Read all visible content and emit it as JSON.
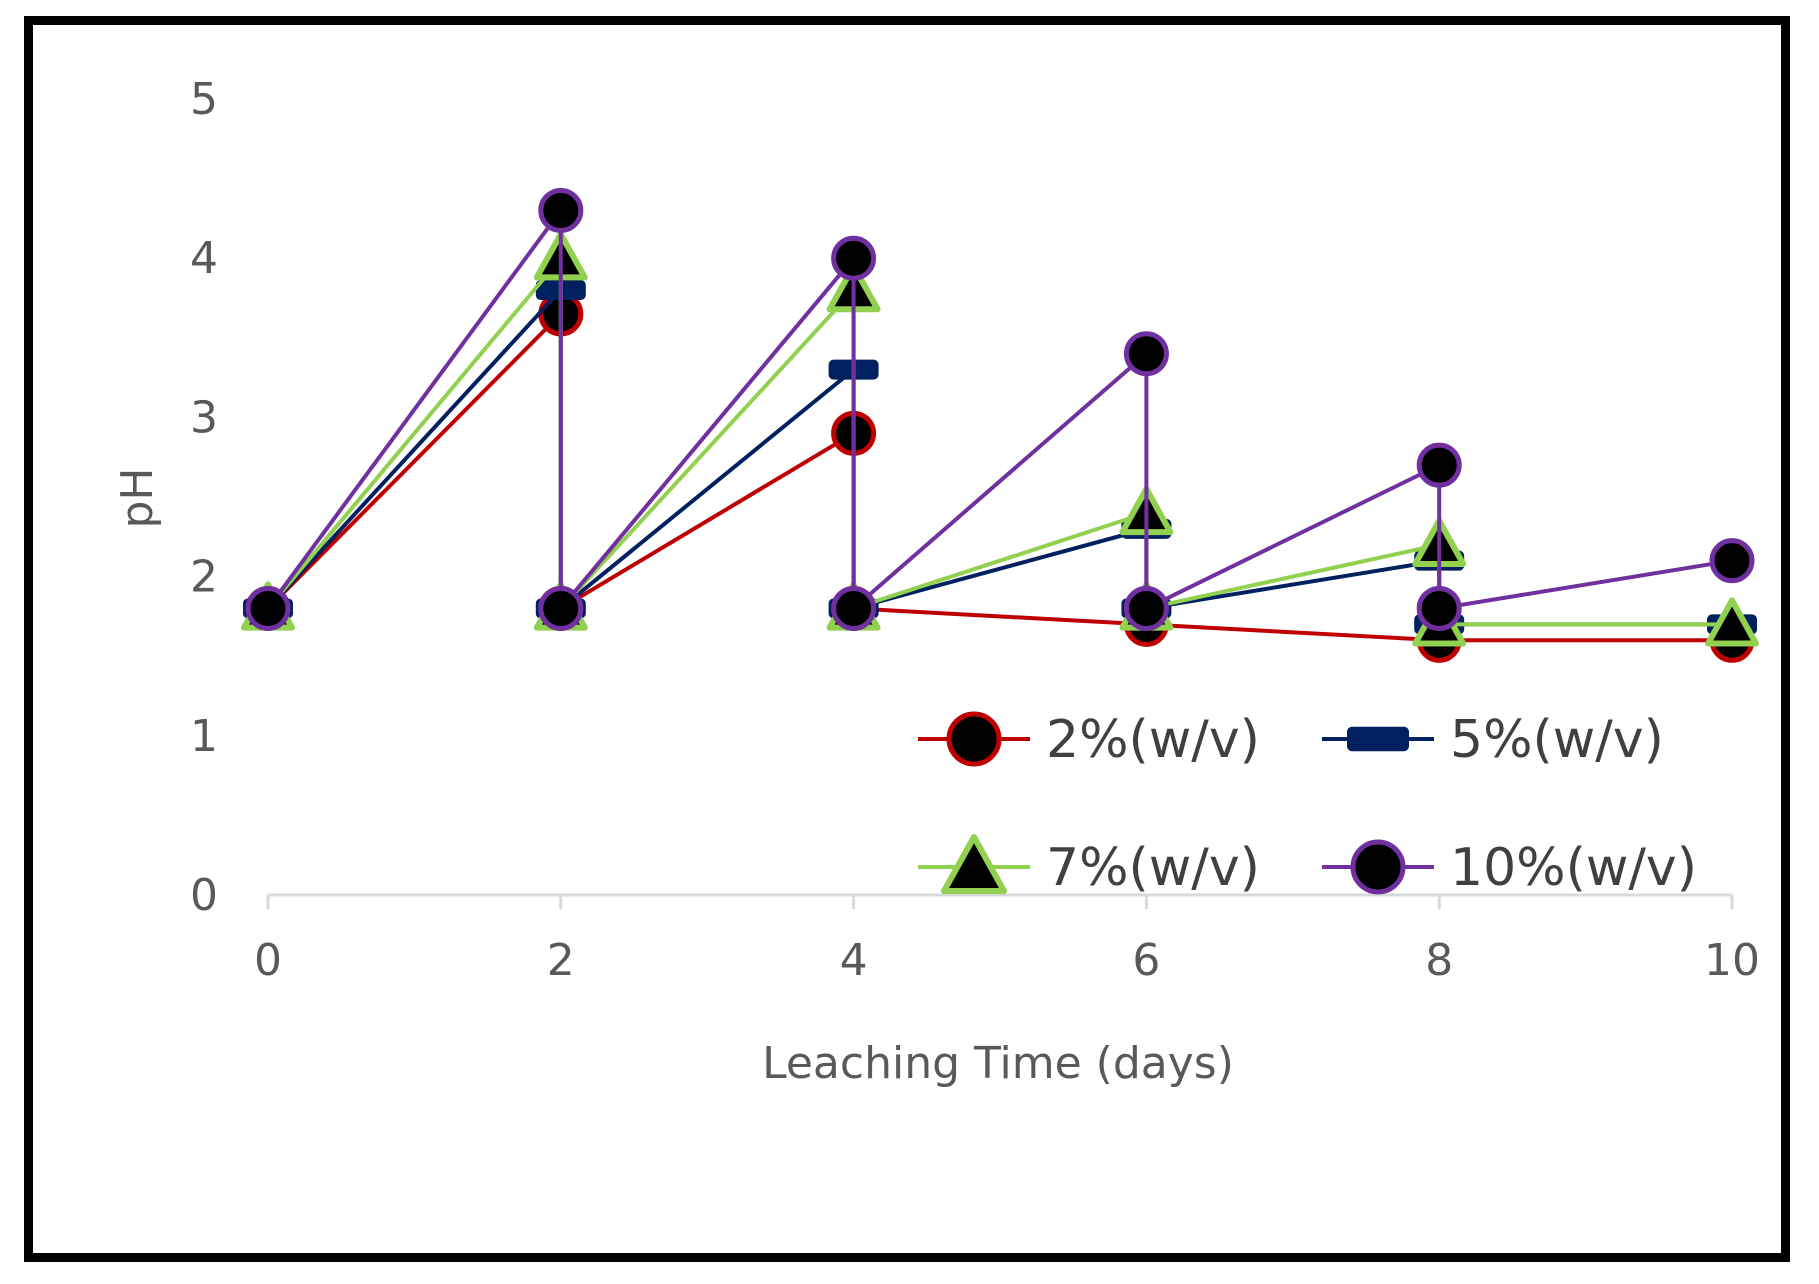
{
  "chart_data": {
    "type": "line",
    "title": "",
    "xlabel": "Leaching Time (days)",
    "ylabel": "pH",
    "xlim": [
      0,
      10
    ],
    "ylim": [
      0,
      5
    ],
    "xticks": [
      0,
      2,
      4,
      6,
      8,
      10
    ],
    "yticks": [
      0,
      1,
      2,
      3,
      4,
      5
    ],
    "grid": false,
    "legend_position": "bottom-right",
    "series": [
      {
        "name": "2%(w/v)",
        "color": "#C00000",
        "marker": "circle",
        "marker_fill": "#000000",
        "points": [
          [
            0,
            1.8
          ],
          [
            2,
            3.65
          ],
          [
            2,
            1.8
          ],
          [
            4,
            2.9
          ],
          [
            4,
            1.8
          ],
          [
            6,
            1.7
          ],
          [
            8,
            1.6
          ],
          [
            10,
            1.6
          ]
        ]
      },
      {
        "name": "5%(w/v)",
        "color": "#002060",
        "marker": "dash",
        "marker_fill": "#002060",
        "points": [
          [
            0,
            1.8
          ],
          [
            2,
            3.8
          ],
          [
            2,
            1.8
          ],
          [
            4,
            3.3
          ],
          [
            4,
            1.8
          ],
          [
            6,
            2.3
          ],
          [
            6,
            1.8
          ],
          [
            8,
            2.1
          ],
          [
            8,
            1.7
          ],
          [
            10,
            1.7
          ]
        ]
      },
      {
        "name": "7%(w/v)",
        "color": "#92D050",
        "marker": "triangle",
        "marker_fill": "#000000",
        "points": [
          [
            0,
            1.8
          ],
          [
            2,
            4.0
          ],
          [
            2,
            1.8
          ],
          [
            4,
            3.8
          ],
          [
            4,
            1.8
          ],
          [
            6,
            2.4
          ],
          [
            6,
            1.8
          ],
          [
            8,
            2.2
          ],
          [
            8,
            1.7
          ],
          [
            10,
            1.7
          ]
        ]
      },
      {
        "name": "10%(w/v)",
        "color": "#7030A0",
        "marker": "circle",
        "marker_fill": "#000000",
        "points": [
          [
            0,
            1.8
          ],
          [
            2,
            4.3
          ],
          [
            2,
            1.8
          ],
          [
            4,
            4.0
          ],
          [
            4,
            1.8
          ],
          [
            6,
            3.4
          ],
          [
            6,
            1.8
          ],
          [
            8,
            2.7
          ],
          [
            8,
            1.8
          ],
          [
            10,
            2.1
          ]
        ]
      }
    ]
  }
}
